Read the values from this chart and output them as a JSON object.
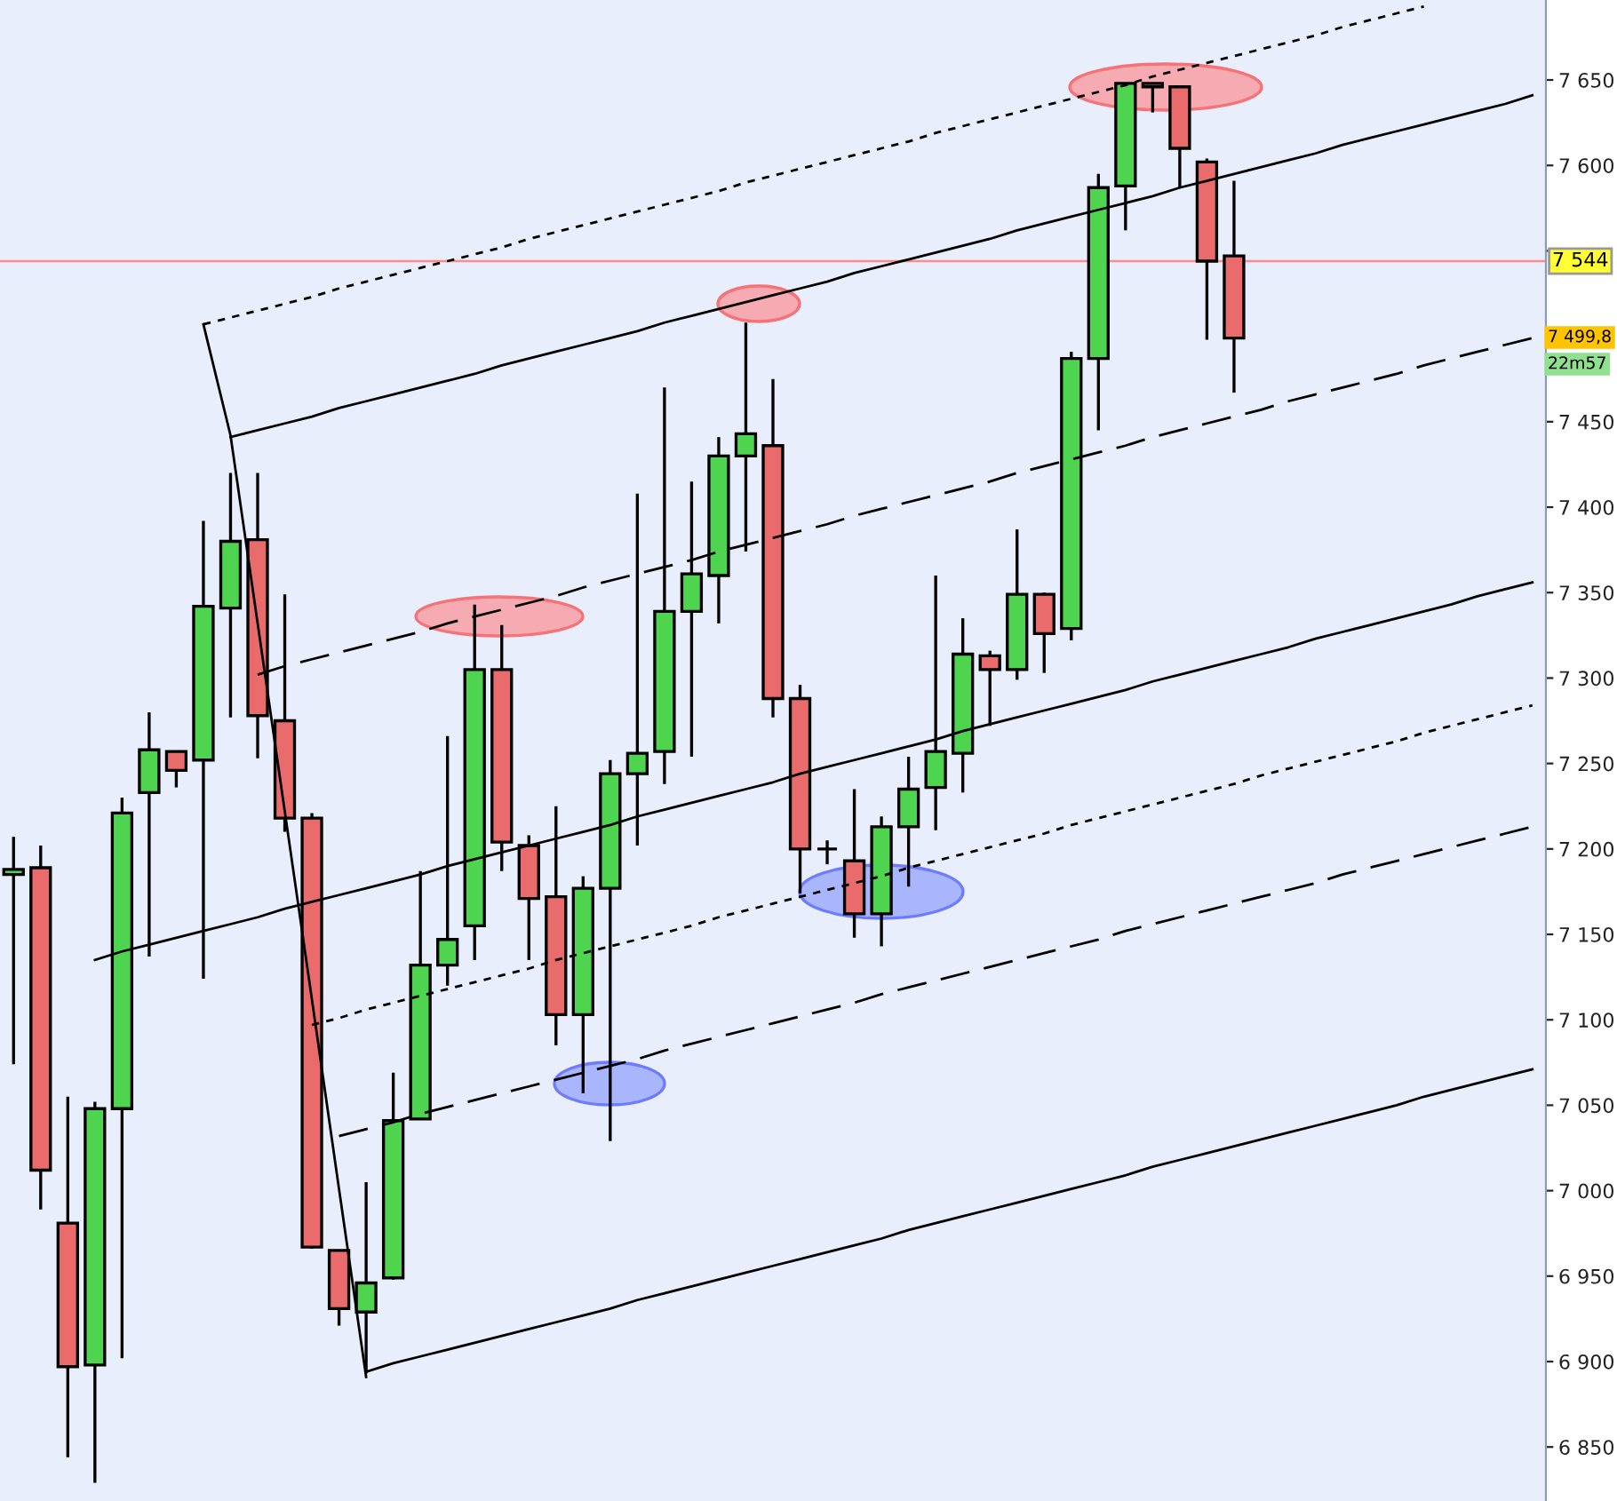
{
  "chart_data": {
    "type": "candlestick",
    "categories": [
      null,
      null,
      null,
      null,
      null,
      null,
      null,
      null,
      null,
      null,
      null,
      null,
      null,
      null,
      null,
      null,
      null,
      null,
      null,
      null,
      null,
      null,
      null,
      null,
      null,
      null,
      null,
      null,
      null,
      null,
      null,
      null,
      null,
      null,
      null,
      null,
      null,
      null,
      null,
      null,
      null,
      null,
      null,
      null,
      null,
      null,
      null,
      null,
      null,
      null,
      null,
      null,
      null,
      null,
      null,
      null,
      null
    ],
    "ohlc": [
      [
        7185,
        7207,
        7074,
        7188
      ],
      [
        7189,
        7202,
        6989,
        7012
      ],
      [
        6981,
        7055,
        6844,
        6897
      ],
      [
        6898,
        7052,
        6829,
        7048
      ],
      [
        7048,
        7230,
        6902,
        7221
      ],
      [
        7233,
        7280,
        7137,
        7258
      ],
      [
        7257,
        7257,
        7236,
        7246
      ],
      [
        7252,
        7392,
        7124,
        7342
      ],
      [
        7341,
        7420,
        7277,
        7380
      ],
      [
        7381,
        7420,
        7253,
        7278
      ],
      [
        7275,
        7349,
        7210,
        7218
      ],
      [
        7218,
        7221,
        6966,
        6967
      ],
      [
        6965,
        6965,
        6921,
        6931
      ],
      [
        6929,
        7005,
        6893,
        6946
      ],
      [
        6949,
        7069,
        6948,
        7041
      ],
      [
        7042,
        7187,
        7042,
        7132
      ],
      [
        7132,
        7266,
        7120,
        7147
      ],
      [
        7155,
        7343,
        7135,
        7305
      ],
      [
        7305,
        7331,
        7187,
        7204
      ],
      [
        7202,
        7208,
        7135,
        7171
      ],
      [
        7172,
        7225,
        7085,
        7103
      ],
      [
        7103,
        7184,
        7057,
        7177
      ],
      [
        7177,
        7252,
        7029,
        7244
      ],
      [
        7244,
        7408,
        7202,
        7256
      ],
      [
        7257,
        7470,
        7238,
        7339
      ],
      [
        7339,
        7415,
        7254,
        7361
      ],
      [
        7360,
        7441,
        7332,
        7430
      ],
      [
        7430,
        7508,
        7374,
        7443
      ],
      [
        7436,
        7475,
        7277,
        7288
      ],
      [
        7288,
        7296,
        7174,
        7200
      ],
      [
        7200,
        7205,
        7191,
        7200
      ],
      [
        7193,
        7235,
        7148,
        7162
      ],
      [
        7162,
        7219,
        7143,
        7213
      ],
      [
        7213,
        7254,
        7178,
        7235
      ],
      [
        7236,
        7360,
        7211,
        7257
      ],
      [
        7256,
        7335,
        7233,
        7314
      ],
      [
        7313,
        7316,
        7272,
        7305
      ],
      [
        7305,
        7387,
        7299,
        7349
      ],
      [
        7349,
        7350,
        7303,
        7326
      ],
      [
        7329,
        7491,
        7322,
        7487
      ],
      [
        7487,
        7595,
        7445,
        7587
      ],
      [
        7588,
        7648,
        7562,
        7648
      ],
      [
        7648,
        7648,
        7631,
        7646
      ],
      [
        7646,
        7646,
        7587,
        7610
      ],
      [
        7602,
        7604,
        7498,
        7544
      ],
      [
        7547,
        7591,
        7467,
        7499
      ],
      null,
      null,
      null,
      null,
      null,
      null,
      null,
      null,
      null,
      null,
      null
    ],
    "colors": [
      "#4fd44f",
      "#ea6b6b",
      "#ea6b6b",
      "#4fd44f",
      "#4fd44f",
      "#4fd44f",
      "#ea6b6b",
      "#4fd44f",
      "#4fd44f",
      "#ea6b6b",
      "#ea6b6b",
      "#ea6b6b",
      "#ea6b6b",
      "#4fd44f",
      "#4fd44f",
      "#4fd44f",
      "#4fd44f",
      "#4fd44f",
      "#ea6b6b",
      "#ea6b6b",
      "#ea6b6b",
      "#4fd44f",
      "#4fd44f",
      "#4fd44f",
      "#4fd44f",
      "#4fd44f",
      "#4fd44f",
      "#4fd44f",
      "#ea6b6b",
      "#ea6b6b",
      "#000000",
      "#ea6b6b",
      "#4fd44f",
      "#4fd44f",
      "#4fd44f",
      "#4fd44f",
      "#ea6b6b",
      "#4fd44f",
      "#ea6b6b",
      "#4fd44f",
      "#4fd44f",
      "#4fd44f",
      "#ea6b6b",
      "#ea6b6b",
      "#ea6b6b",
      "#ea6b6b",
      null,
      null,
      null,
      null,
      null,
      null,
      null,
      null,
      null,
      null,
      null
    ],
    "series": [
      {
        "type": "line",
        "color": "#000000",
        "line_style": "dotted",
        "values": [
          null,
          null,
          null,
          null,
          null,
          null,
          null,
          7507,
          7511,
          7515,
          7519,
          7523,
          7528,
          7532,
          7536,
          7540,
          7544,
          7548,
          7552,
          7557,
          7561,
          7565,
          7569,
          7573,
          7577,
          7581,
          7585,
          7590,
          7594,
          7598,
          7602,
          7606,
          7610,
          7614,
          7619,
          7623,
          7627,
          7631,
          7635,
          7639,
          7643,
          7647,
          7652,
          7656,
          7660,
          7664,
          7668,
          7672,
          7676,
          7681,
          7685,
          7689,
          7693,
          null,
          null,
          null,
          null
        ]
      },
      {
        "type": "line",
        "color": "#000000",
        "line_style": "solid",
        "values": [
          null,
          null,
          null,
          null,
          null,
          null,
          null,
          null,
          7441,
          7445,
          7449,
          7453,
          7458,
          7462,
          7466,
          7470,
          7474,
          7478,
          7483,
          7487,
          7491,
          7495,
          7499,
          7503,
          7508,
          7512,
          7516,
          7520,
          7524,
          7528,
          7532,
          7537,
          7541,
          7545,
          7549,
          7553,
          7557,
          7562,
          7566,
          7570,
          7574,
          7578,
          7582,
          7587,
          7591,
          7595,
          7599,
          7603,
          7607,
          7612,
          7616,
          7620,
          7624,
          7628,
          7632,
          7636,
          7641
        ]
      },
      {
        "type": "line",
        "color": "#000000",
        "line_style": "dashed",
        "values": [
          null,
          null,
          null,
          null,
          null,
          null,
          null,
          null,
          null,
          7302,
          7307,
          7311,
          7315,
          7319,
          7323,
          7327,
          7332,
          7336,
          7340,
          7344,
          7348,
          7353,
          7357,
          7361,
          7365,
          7369,
          7374,
          7378,
          7382,
          7386,
          7390,
          7395,
          7399,
          7403,
          7407,
          7411,
          7415,
          7420,
          7424,
          7428,
          7432,
          7436,
          7441,
          7445,
          7449,
          7453,
          7457,
          7462,
          7466,
          7470,
          7474,
          7478,
          7483,
          7487,
          7491,
          7495,
          7499
        ]
      },
      {
        "type": "line",
        "color": "#000000",
        "line_style": "solid",
        "values": [
          null,
          null,
          null,
          7135,
          7140,
          7144,
          7148,
          7152,
          7156,
          7160,
          7165,
          7169,
          7173,
          7177,
          7181,
          7185,
          7190,
          7194,
          7198,
          7202,
          7206,
          7210,
          7214,
          7219,
          7223,
          7227,
          7231,
          7235,
          7239,
          7244,
          7248,
          7252,
          7256,
          7260,
          7264,
          7269,
          7273,
          7277,
          7281,
          7285,
          7289,
          7293,
          7298,
          7302,
          7306,
          7310,
          7314,
          7318,
          7323,
          7327,
          7331,
          7335,
          7339,
          7343,
          7348,
          7352,
          7356
        ]
      },
      {
        "type": "line",
        "color": "#000000",
        "line_style": "dotted",
        "values": [
          null,
          null,
          null,
          null,
          null,
          null,
          null,
          null,
          null,
          null,
          null,
          7097,
          7101,
          7106,
          7110,
          7114,
          7118,
          7122,
          7126,
          7130,
          7135,
          7139,
          7143,
          7147,
          7151,
          7155,
          7160,
          7164,
          7168,
          7172,
          7176,
          7180,
          7184,
          7189,
          7193,
          7197,
          7201,
          7205,
          7209,
          7214,
          7218,
          7222,
          7226,
          7230,
          7234,
          7238,
          7243,
          7247,
          7251,
          7255,
          7259,
          7263,
          7268,
          7272,
          7276,
          7280,
          7284
        ]
      },
      {
        "type": "line",
        "color": "#000000",
        "line_style": "dashed",
        "values": [
          null,
          null,
          null,
          null,
          null,
          null,
          null,
          null,
          null,
          null,
          null,
          null,
          7032,
          7036,
          7040,
          7045,
          7049,
          7053,
          7057,
          7061,
          7065,
          7069,
          7073,
          7077,
          7082,
          7086,
          7090,
          7094,
          7098,
          7102,
          7106,
          7110,
          7115,
          7119,
          7123,
          7127,
          7131,
          7135,
          7139,
          7143,
          7147,
          7152,
          7156,
          7160,
          7164,
          7168,
          7172,
          7176,
          7180,
          7185,
          7189,
          7193,
          7197,
          7201,
          7205,
          7209,
          7213
        ]
      },
      {
        "type": "line",
        "color": "#000000",
        "line_style": "solid",
        "values": [
          null,
          null,
          null,
          null,
          null,
          null,
          null,
          null,
          null,
          null,
          null,
          null,
          null,
          6894,
          6899,
          6903,
          6907,
          6911,
          6915,
          6919,
          6923,
          6927,
          6931,
          6936,
          6940,
          6944,
          6948,
          6952,
          6956,
          6960,
          6964,
          6968,
          6972,
          6977,
          6981,
          6985,
          6989,
          6993,
          6997,
          7001,
          7005,
          7009,
          7014,
          7018,
          7022,
          7026,
          7030,
          7034,
          7038,
          7042,
          7046,
          7050,
          7055,
          7059,
          7063,
          7067,
          7071
        ]
      },
      {
        "type": "line",
        "color": "#000000",
        "line_style": "solid",
        "values": [
          null,
          null,
          null,
          null,
          null,
          null,
          null,
          7507,
          7442,
          7332,
          7222,
          7112,
          7001,
          6891,
          null,
          null,
          null,
          null,
          null,
          null,
          null,
          null,
          null,
          null,
          null,
          null,
          null,
          null,
          null,
          null,
          null,
          null,
          null,
          null,
          null,
          null,
          null,
          null,
          null,
          null,
          null,
          null,
          null,
          null,
          null,
          null,
          null,
          null,
          null,
          null,
          null,
          null,
          null,
          null,
          null,
          null,
          null
        ]
      }
    ],
    "ylim": [
      6818.4,
      7696.8
    ],
    "yticks": [
      {
        "value": 6850,
        "label": "6 850"
      },
      {
        "value": 6900,
        "label": "6 900"
      },
      {
        "value": 6950,
        "label": "6 950"
      },
      {
        "value": 7000,
        "label": "7 000"
      },
      {
        "value": 7050,
        "label": "7 050"
      },
      {
        "value": 7100,
        "label": "7 100"
      },
      {
        "value": 7150,
        "label": "7 150"
      },
      {
        "value": 7200,
        "label": "7 200"
      },
      {
        "value": 7250,
        "label": "7 250"
      },
      {
        "value": 7300,
        "label": "7 300"
      },
      {
        "value": 7350,
        "label": "7 350"
      },
      {
        "value": 7400,
        "label": "7 400"
      },
      {
        "value": 7450,
        "label": "7 450"
      },
      {
        "value": 7500,
        "label": null
      },
      {
        "value": 7550,
        "label": null
      },
      {
        "value": 7600,
        "label": "7 600"
      },
      {
        "value": 7650,
        "label": "7 650"
      }
    ],
    "tick_labels": "y",
    "ref_lines": [
      {
        "axis": "y",
        "value": 7544,
        "label": "7 544",
        "color": "#ff8c8c"
      }
    ],
    "annotations": [
      "7 499,8",
      "22m57"
    ]
  }
}
